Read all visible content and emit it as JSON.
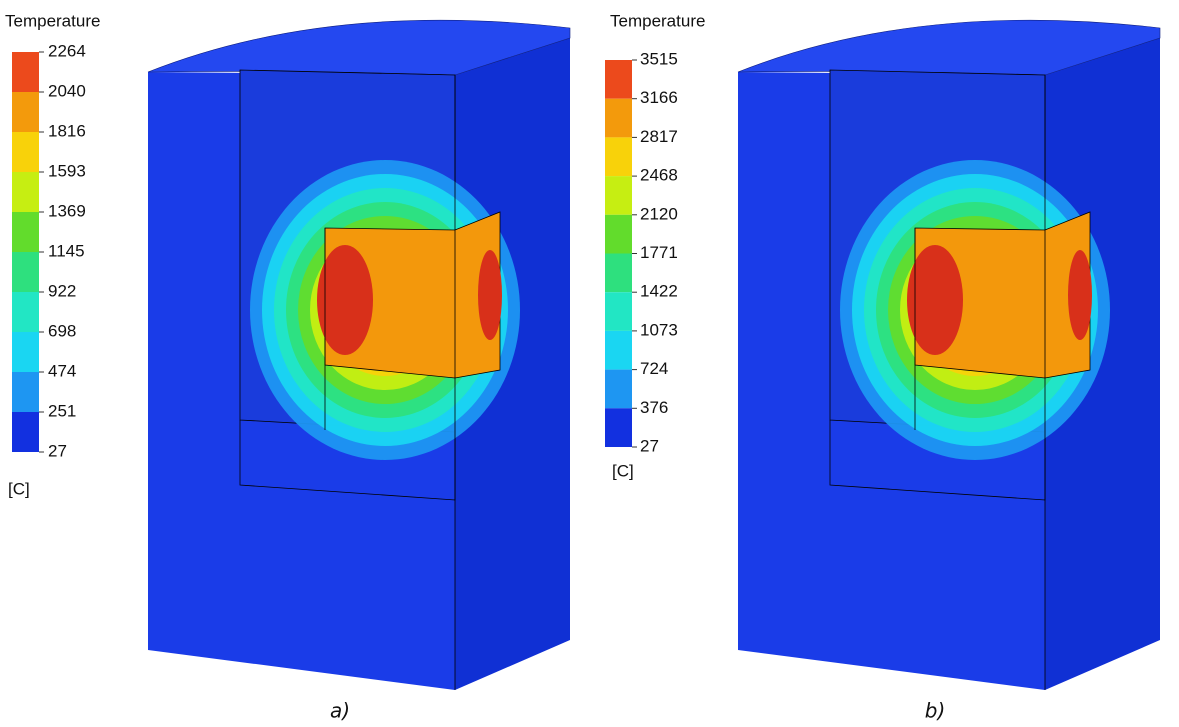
{
  "panels": [
    {
      "legend_title": "Temperature",
      "levels": [
        "2264",
        "2040",
        "1816",
        "1593",
        "1369",
        "1145",
        "922",
        "698",
        "474",
        "251",
        "27"
      ],
      "unit": "[C]",
      "caption": "a)",
      "band_colors": [
        "#ec4a1c",
        "#f39a0c",
        "#f8d20a",
        "#c6ee12",
        "#62dc2c",
        "#2ee07e",
        "#22e6c4",
        "#1ad6f2",
        "#1e96f2",
        "#1230e0"
      ]
    },
    {
      "legend_title": "Temperature",
      "levels": [
        "3515",
        "3166",
        "2817",
        "2468",
        "2120",
        "1771",
        "1422",
        "1073",
        "724",
        "376",
        "27"
      ],
      "unit": "[C]",
      "caption": "b)",
      "band_colors": [
        "#ec4a1c",
        "#f39a0c",
        "#f8d20a",
        "#c6ee12",
        "#62dc2c",
        "#2ee07e",
        "#22e6c4",
        "#1ad6f2",
        "#1e96f2",
        "#1230e0"
      ]
    }
  ]
}
